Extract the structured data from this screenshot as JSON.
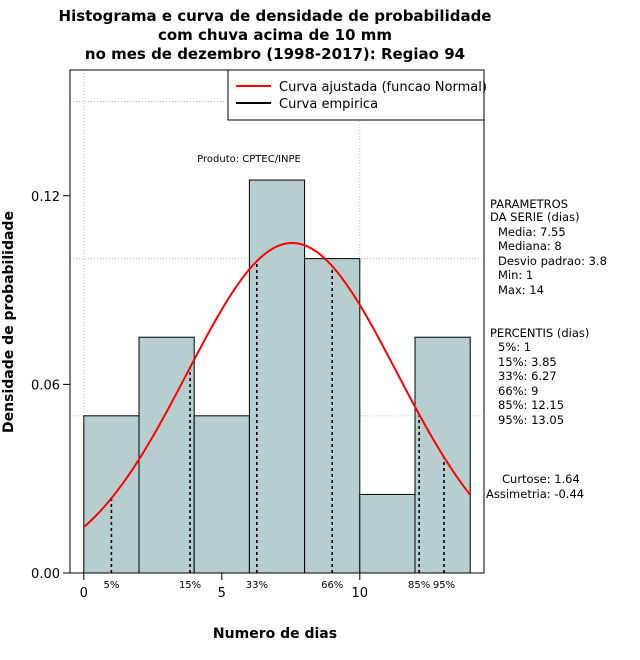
{
  "chart_data": {
    "type": "histogram",
    "title": [
      "Histograma e curva de densidade de probabilidade",
      "com chuva acima de 10 mm",
      "no mes de dezembro (1998-2017): Regiao 94"
    ],
    "xlabel": "Numero de dias",
    "ylabel": "Densidade de probabilidade",
    "xlim": [
      -0.5,
      14.5
    ],
    "ylim": [
      0,
      0.16
    ],
    "x_ticks": [
      0,
      5,
      10
    ],
    "x_tick_labels": [
      "0",
      "5",
      "10"
    ],
    "y_ticks": [
      0.0,
      0.06,
      0.12
    ],
    "y_tick_labels": [
      "0.00",
      "0.06",
      "0.12"
    ],
    "grid": true,
    "grid_x": [
      0,
      10
    ],
    "grid_y": [
      0.05,
      0.1,
      0.15
    ],
    "bins": [
      {
        "x0": 0,
        "x1": 2,
        "density": 0.05
      },
      {
        "x0": 2,
        "x1": 4,
        "density": 0.075
      },
      {
        "x0": 4,
        "x1": 6,
        "density": 0.05
      },
      {
        "x0": 6,
        "x1": 8,
        "density": 0.125
      },
      {
        "x0": 8,
        "x1": 10,
        "density": 0.1
      },
      {
        "x0": 10,
        "x1": 12,
        "density": 0.025
      },
      {
        "x0": 12,
        "x1": 14,
        "density": 0.075
      }
    ],
    "bar_color": "#b7cecf",
    "normal_curve": {
      "name": "Curva ajustada (funcao Normal)",
      "mean": 7.55,
      "sd": 3.8,
      "color": "#ff0000",
      "x_range": [
        0,
        14
      ]
    },
    "empirical_curve": {
      "name": "Curva empirica",
      "color": "#000000"
    },
    "legend_position": "top-right",
    "percentile_lines": [
      {
        "label": "5%",
        "x": 1
      },
      {
        "label": "15%",
        "x": 3.85
      },
      {
        "label": "33%",
        "x": 6.27
      },
      {
        "label": "66%",
        "x": 9
      },
      {
        "label": "85%",
        "x": 12.15
      },
      {
        "label": "95%",
        "x": 13.05
      }
    ],
    "annotation": "Produto: CPTEC/INPE"
  },
  "side_panel": {
    "params_title_1": "PARAMETROS",
    "params_title_2": "DA SERIE (dias)",
    "params": [
      "Media: 7.55",
      "Mediana: 8",
      "Desvio padrao: 3.8",
      "Min: 1",
      "Max: 14"
    ],
    "percentis_title": "PERCENTIS (dias)",
    "percentis": [
      "5%: 1",
      "15%: 3.85",
      "33%: 6.27",
      "66%: 9",
      "85%: 12.15",
      "95%: 13.05"
    ],
    "curtose": "Curtose: 1.64",
    "assimetria": "Assimetria: -0.44"
  }
}
